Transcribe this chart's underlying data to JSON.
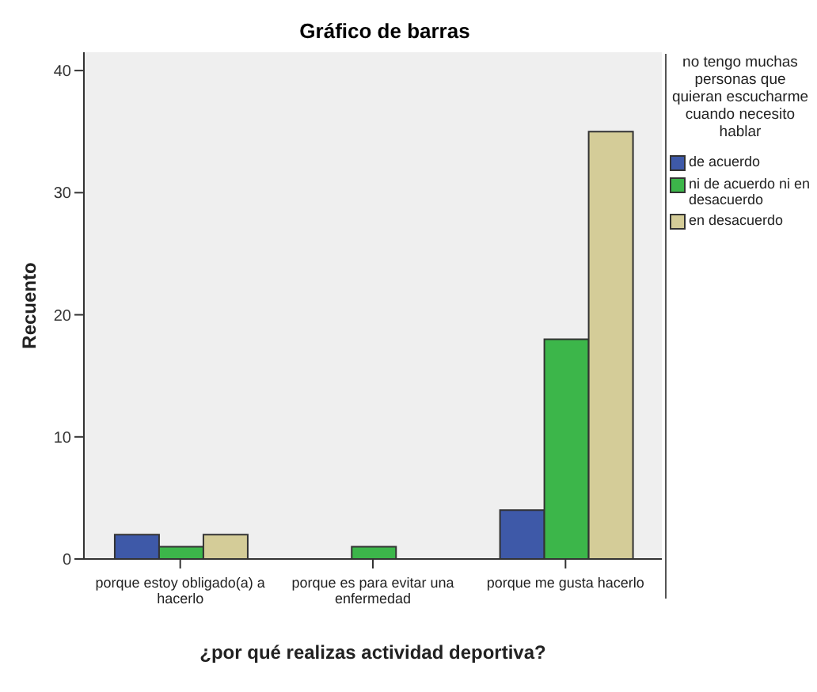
{
  "chart_data": {
    "type": "bar",
    "title": "Gráfico de barras",
    "xlabel": "¿por qué realizas actividad deportiva?",
    "ylabel": "Recuento",
    "legend_title": "no tengo muchas personas que quieran escucharme cuando necesito hablar",
    "legend": "right",
    "categories": [
      "porque estoy obligado(a) a hacerlo",
      "porque es para evitar una enfermedad",
      "porque me gusta hacerlo"
    ],
    "series": [
      {
        "name": "de acuerdo",
        "color": "#3e59a8",
        "values": [
          2,
          null,
          4
        ]
      },
      {
        "name": "ni de acuerdo ni en desacuerdo",
        "color": "#3cb64a",
        "values": [
          1,
          1,
          18
        ]
      },
      {
        "name": "en desacuerdo",
        "color": "#d4cc98",
        "values": [
          2,
          null,
          35
        ]
      }
    ],
    "ylim": [
      0,
      41.5
    ],
    "yticks": [
      0,
      10,
      20,
      30,
      40
    ],
    "grid": false
  }
}
